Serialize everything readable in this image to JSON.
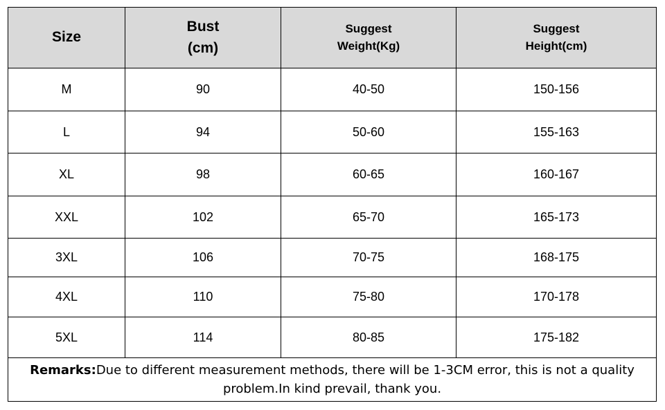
{
  "table": {
    "headers": [
      {
        "lines": [
          "Size"
        ]
      },
      {
        "lines": [
          "Bust",
          "(cm)"
        ]
      },
      {
        "lines": [
          "Suggest",
          "Weight(Kg)"
        ]
      },
      {
        "lines": [
          "Suggest",
          "Height(cm)"
        ]
      }
    ],
    "rows": [
      [
        "M",
        "90",
        "40-50",
        "150-156"
      ],
      [
        "L",
        "94",
        "50-60",
        "155-163"
      ],
      [
        "XL",
        "98",
        "60-65",
        "160-167"
      ],
      [
        "XXL",
        "102",
        "65-70",
        "165-173"
      ],
      [
        "3XL",
        "106",
        "70-75",
        "168-175"
      ],
      [
        "4XL",
        "110",
        "75-80",
        "170-178"
      ],
      [
        "5XL",
        "114",
        "80-85",
        "175-182"
      ]
    ]
  },
  "remarks": {
    "label": "Remarks:",
    "text": "Due to different measurement methods, there will be 1-3CM error, this is not a quality problem.In kind prevail, thank you."
  },
  "colors": {
    "header_bg": "#d9d9d9",
    "border": "#000000"
  }
}
